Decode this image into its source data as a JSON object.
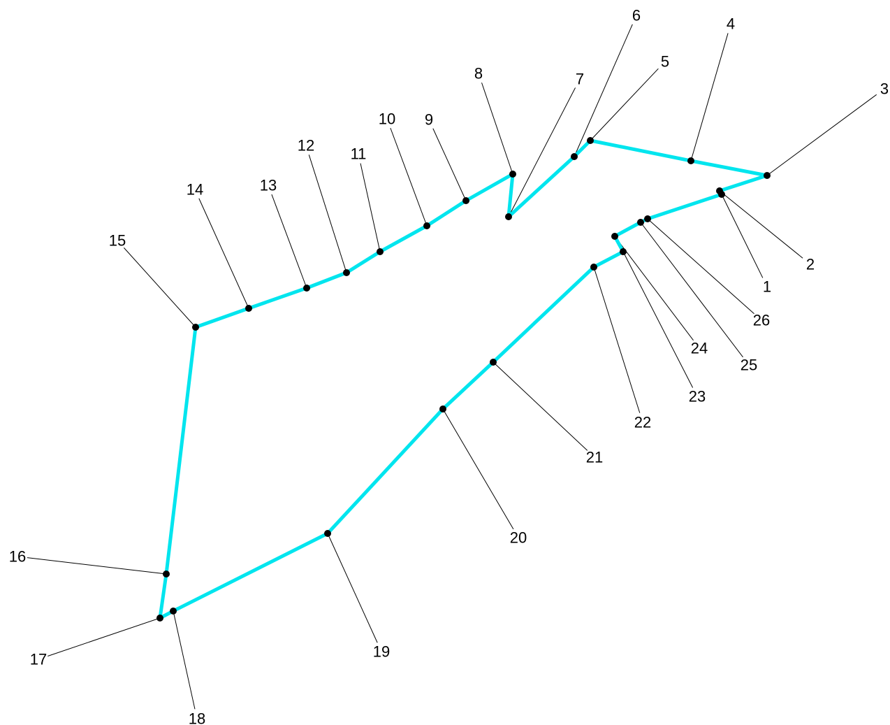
{
  "diagram": {
    "outline_color": "#00e5ee",
    "point_color": "#000000",
    "leader_color": "#000000",
    "points": [
      {
        "id": "p1",
        "label": "1"
      },
      {
        "id": "p2",
        "label": "2"
      },
      {
        "id": "p3",
        "label": "3"
      },
      {
        "id": "p4",
        "label": "4"
      },
      {
        "id": "p5",
        "label": "5"
      },
      {
        "id": "p6",
        "label": "6"
      },
      {
        "id": "p7",
        "label": "7"
      },
      {
        "id": "p8",
        "label": "8"
      },
      {
        "id": "p9",
        "label": "9"
      },
      {
        "id": "p10",
        "label": "10"
      },
      {
        "id": "p11",
        "label": "11"
      },
      {
        "id": "p12",
        "label": "12"
      },
      {
        "id": "p13",
        "label": "13"
      },
      {
        "id": "p14",
        "label": "14"
      },
      {
        "id": "p15",
        "label": "15"
      },
      {
        "id": "p16",
        "label": "16"
      },
      {
        "id": "p17",
        "label": "17"
      },
      {
        "id": "p18",
        "label": "18"
      },
      {
        "id": "p19",
        "label": "19"
      },
      {
        "id": "p20",
        "label": "20"
      },
      {
        "id": "p21",
        "label": "21"
      },
      {
        "id": "p22",
        "label": "22"
      },
      {
        "id": "p23",
        "label": "23"
      },
      {
        "id": "p24",
        "label": "24"
      },
      {
        "id": "p25",
        "label": "25"
      },
      {
        "id": "p26",
        "label": "26"
      }
    ]
  }
}
